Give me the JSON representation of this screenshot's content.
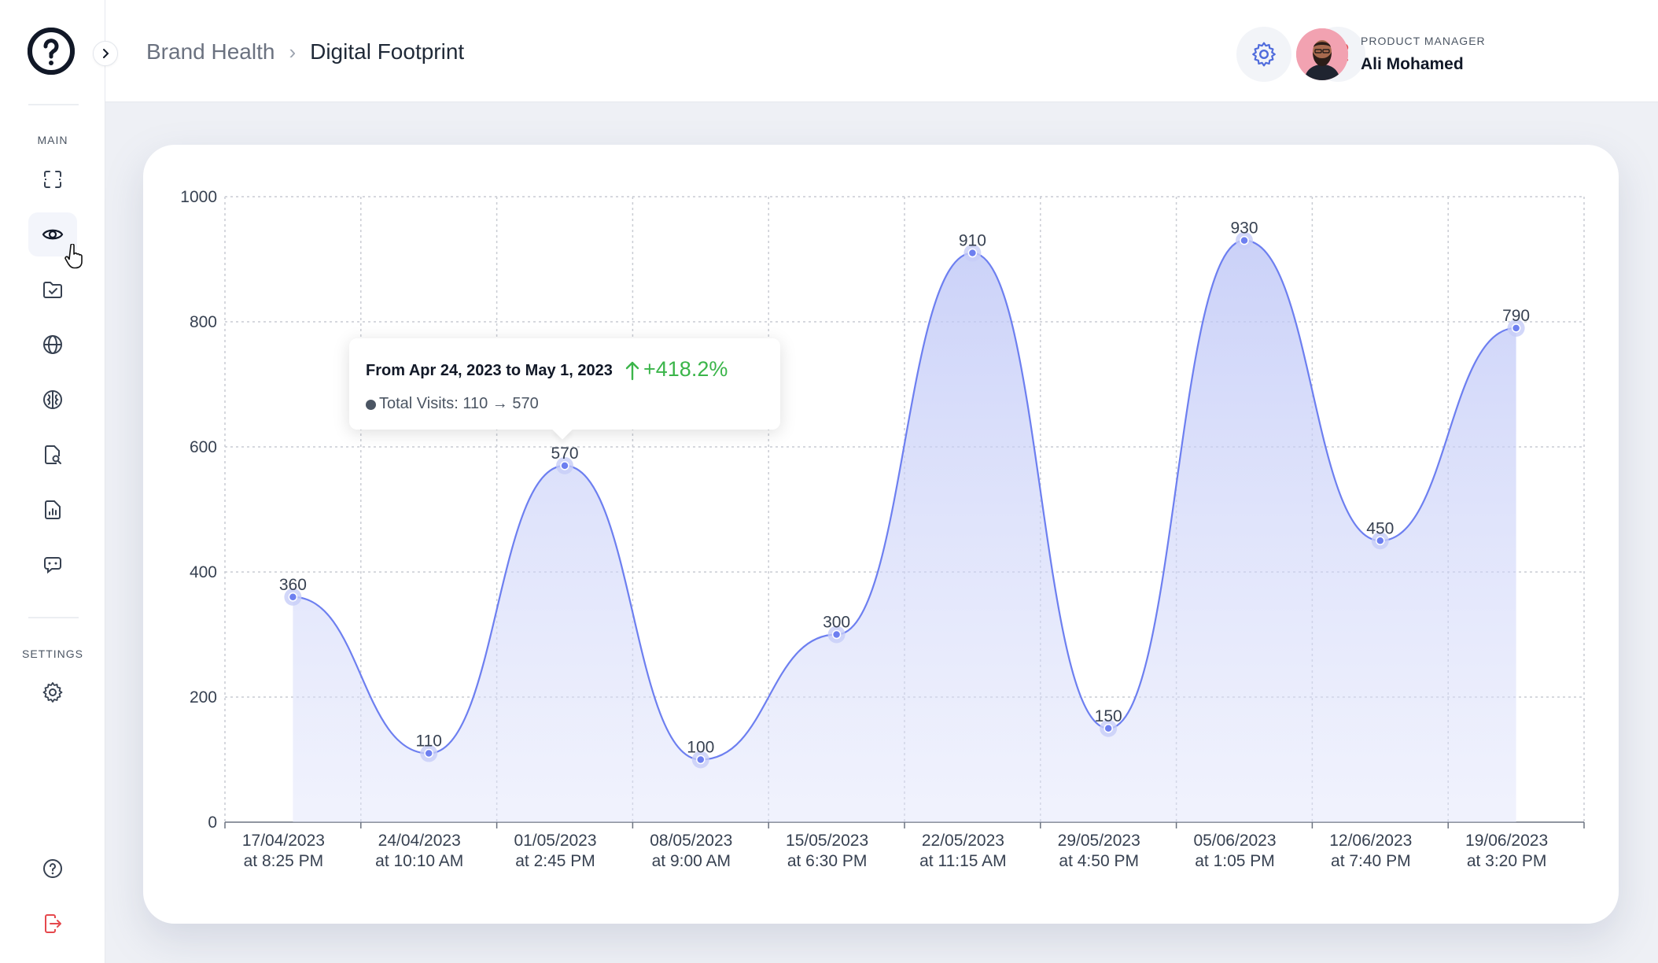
{
  "sidebar": {
    "main_label": "MAIN",
    "settings_label": "SETTINGS",
    "items": [
      {
        "icon": "scan-icon"
      },
      {
        "icon": "eye-icon",
        "active": true
      },
      {
        "icon": "folder-check-icon"
      },
      {
        "icon": "globe-icon"
      },
      {
        "icon": "brain-icon"
      },
      {
        "icon": "file-search-icon"
      },
      {
        "icon": "report-icon"
      },
      {
        "icon": "chat-bot-icon"
      }
    ],
    "settings_items": [
      {
        "icon": "gear-icon"
      }
    ],
    "bottom_items": [
      {
        "icon": "help-icon"
      },
      {
        "icon": "logout-icon"
      }
    ]
  },
  "header": {
    "breadcrumb_parent": "Brand Health",
    "breadcrumb_current": "Digital Footprint",
    "user_role": "PRODUCT MANAGER",
    "user_name": "Ali Mohamed"
  },
  "tooltip": {
    "title": "From Apr 24, 2023 to May 1, 2023",
    "change": "+418.2%",
    "series_text": "Total Visits: 110 → 570"
  },
  "colors": {
    "accent": "#6d7ff0",
    "positive": "#3bb54a",
    "alert": "#e5484d"
  },
  "chart_data": {
    "type": "area",
    "categories": [
      [
        "17/04/2023",
        "at 8:25 PM"
      ],
      [
        "24/04/2023",
        "at 10:10 AM"
      ],
      [
        "01/05/2023",
        "at 2:45 PM"
      ],
      [
        "08/05/2023",
        "at 9:00 AM"
      ],
      [
        "15/05/2023",
        "at 6:30 PM"
      ],
      [
        "22/05/2023",
        "at 11:15 AM"
      ],
      [
        "29/05/2023",
        "at 4:50 PM"
      ],
      [
        "05/06/2023",
        "at 1:05 PM"
      ],
      [
        "12/06/2023",
        "at 7:40 PM"
      ],
      [
        "19/06/2023",
        "at 3:20 PM"
      ]
    ],
    "series": [
      {
        "values": [
          360,
          110,
          570,
          100,
          300,
          910,
          150,
          930,
          450,
          790
        ]
      }
    ],
    "ylim": [
      0,
      1000
    ],
    "yticks": [
      0,
      200,
      400,
      600,
      800,
      1000
    ],
    "grid": true,
    "legend": "none"
  }
}
